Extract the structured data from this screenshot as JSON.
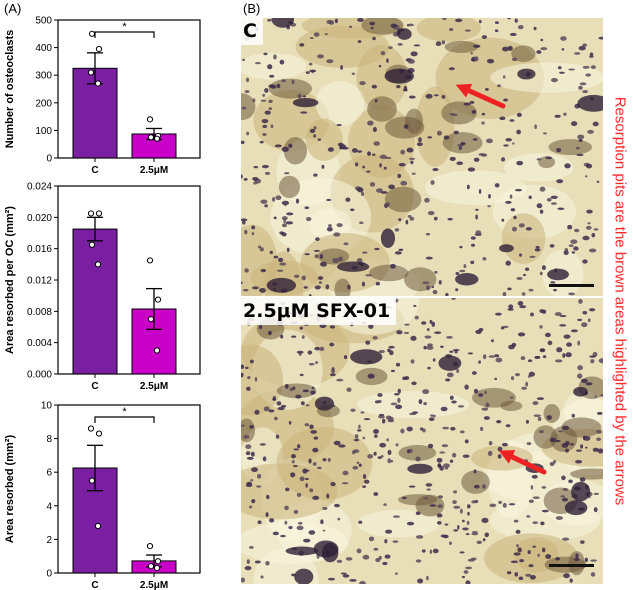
{
  "panel_labels": {
    "a": "(A)",
    "b": "(B)"
  },
  "colors": {
    "control_bar": "#7a1fa2",
    "treated_bar": "#c800c8",
    "arrow": "#ee2222",
    "note": "#ff2a2a"
  },
  "chart_data": [
    {
      "type": "bar",
      "categories": [
        "C",
        "2.5μM"
      ],
      "values": [
        325,
        87
      ],
      "errors": [
        56,
        20
      ],
      "points": [
        [
          310,
          395,
          450,
          270
        ],
        [
          140,
          80,
          75,
          70
        ]
      ],
      "ylabel": "Number of osteoclasts",
      "ylim": [
        0,
        500
      ],
      "yticks": [
        "0",
        "100",
        "200",
        "300",
        "400",
        "500"
      ],
      "significance": "*",
      "grid": false
    },
    {
      "type": "bar",
      "categories": [
        "C",
        "2.5μM"
      ],
      "values": [
        0.0185,
        0.0083
      ],
      "errors": [
        0.0015,
        0.0026
      ],
      "points": [
        [
          0.0205,
          0.0205,
          0.0165,
          0.014
        ],
        [
          0.0145,
          0.0095,
          0.007,
          0.003
        ]
      ],
      "ylabel": "Area resorbed per OC (mm²)",
      "ylim": [
        0,
        0.024
      ],
      "yticks": [
        "0.000",
        "0.004",
        "0.008",
        "0.012",
        "0.016",
        "0.020",
        "0.024"
      ],
      "significance": "",
      "grid": false
    },
    {
      "type": "bar",
      "categories": [
        "C",
        "2.5μM"
      ],
      "values": [
        6.25,
        0.72
      ],
      "errors": [
        1.35,
        0.35
      ],
      "points": [
        [
          8.6,
          8.3,
          5.5,
          2.8
        ],
        [
          1.6,
          0.7,
          0.4,
          0.3
        ]
      ],
      "ylabel": "Area resorbed (mm²)",
      "ylim": [
        0,
        10
      ],
      "yticks": [
        "0",
        "2",
        "4",
        "6",
        "8",
        "10"
      ],
      "significance": "*",
      "grid": false
    }
  ],
  "micrographs": [
    {
      "label": "C"
    },
    {
      "label": "2.5μM SFX-01"
    }
  ],
  "side_note": "Resorption pits are the brown areas highlighted by the arrows"
}
